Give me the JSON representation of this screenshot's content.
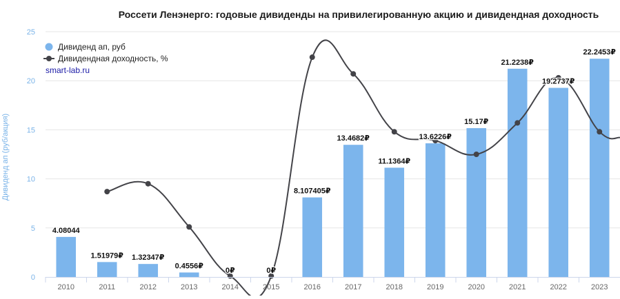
{
  "chart_data": {
    "type": "bar",
    "title": "Россети Ленэнерго: годовые дивиденды на привилегированную акцию и дивидендная доходность",
    "ylabel": "Дивиденд ап (руб/акция)",
    "xlabel": "",
    "ylim": [
      0,
      25
    ],
    "yticks": [
      "0",
      "5",
      "10",
      "15",
      "20",
      "25"
    ],
    "categories": [
      "2010",
      "2011",
      "2012",
      "2013",
      "2014",
      "2015",
      "2016",
      "2017",
      "2018",
      "2019",
      "2020",
      "2021",
      "2022",
      "2023"
    ],
    "series": [
      {
        "name": "Дивиденд ап, руб",
        "type": "bar",
        "color": "#7cb5ec",
        "values": [
          4.08044,
          1.51979,
          1.32347,
          0.4556,
          0,
          0,
          8.107405,
          13.4682,
          11.1364,
          13.6226,
          15.17,
          21.2238,
          19.2737,
          22.2453
        ],
        "labels": [
          "4.08044",
          "1.51979₽",
          "1.32347₽",
          "0.4556₽",
          "0₽",
          "0₽",
          "8.107405₽",
          "13.4682₽",
          "11.1364₽",
          "13.6226₽",
          "15.17₽",
          "21.2238₽",
          "19.2737₽",
          "22.2453₽"
        ]
      },
      {
        "name": "Дивидендная доходность, %",
        "type": "line",
        "color": "#434348",
        "values": [
          null,
          8.7,
          9.5,
          5.1,
          0.1,
          0.1,
          22.4,
          20.7,
          14.8,
          13.9,
          12.5,
          15.7,
          20.3,
          14.8
        ],
        "trailing_value": 14.2
      }
    ],
    "legend_position": "top-left",
    "grid": true
  },
  "credit": "smart-lab.ru"
}
